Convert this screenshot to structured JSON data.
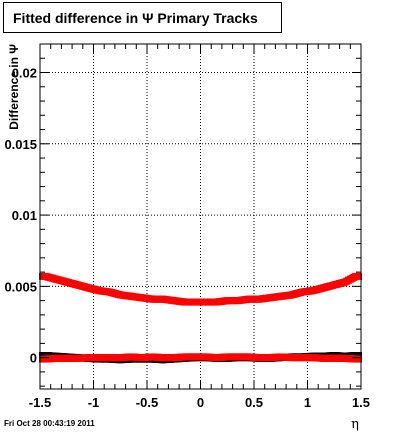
{
  "title": "Fitted difference in Ψ  Primary Tracks",
  "footer": "Fri Oct 28 00:43:19 2011",
  "chart_data": {
    "type": "scatter",
    "title": "Fitted difference in Ψ  Primary Tracks",
    "xlabel": "η",
    "ylabel": "Difference in Ψ",
    "xlim": [
      -1.5,
      1.5
    ],
    "ylim": [
      -0.0022,
      0.022
    ],
    "grid": true,
    "x_ticks": [
      -1.5,
      -1,
      -0.5,
      0,
      0.5,
      1,
      1.5
    ],
    "x_tick_labels": [
      "-1.5",
      "-1",
      "-0.5",
      "0",
      "0.5",
      "1",
      "1.5"
    ],
    "y_ticks": [
      0,
      0.005,
      0.01,
      0.015,
      0.02
    ],
    "y_tick_labels": [
      "0",
      "0.005",
      "0.01",
      "0.015",
      "0.02"
    ],
    "series": [
      {
        "color": "#000000",
        "x": [
          -1.45,
          -1.35,
          -1.25,
          -1.15,
          -1.05,
          -0.95,
          -0.85,
          -0.75,
          -0.65,
          -0.55,
          -0.45,
          -0.35,
          -0.25,
          -0.15,
          -0.05,
          0.05,
          0.15,
          0.25,
          0.35,
          0.45,
          0.55,
          0.65,
          0.75,
          0.85,
          0.95,
          1.05,
          1.15,
          1.25,
          1.35,
          1.45
        ],
        "y": [
          0.00015,
          0.0001,
          5e-05,
          0.0,
          -5e-05,
          -0.0001,
          -0.0001,
          -0.00015,
          -0.0001,
          -0.0001,
          -0.0001,
          -0.00015,
          -0.0001,
          -5e-05,
          0.0,
          0.0,
          -5e-05,
          -5e-05,
          0.0,
          0.0,
          -5e-05,
          -5e-05,
          0.0,
          5e-05,
          5e-05,
          0.0001,
          0.0001,
          0.00015,
          0.0001,
          0.00015
        ]
      },
      {
        "color": "#ff0000",
        "x": [
          -1.45,
          -1.35,
          -1.25,
          -1.15,
          -1.05,
          -0.95,
          -0.85,
          -0.75,
          -0.65,
          -0.55,
          -0.45,
          -0.35,
          -0.25,
          -0.15,
          -0.05,
          0.05,
          0.15,
          0.25,
          0.35,
          0.45,
          0.55,
          0.65,
          0.75,
          0.85,
          0.95,
          1.05,
          1.15,
          1.25,
          1.35,
          1.45
        ],
        "y": [
          -0.0001,
          -5e-05,
          -5e-05,
          -5e-05,
          0.0,
          0.0,
          0.0,
          0.0,
          5e-05,
          0.0,
          5e-05,
          0.0,
          0.0,
          5e-05,
          5e-05,
          5e-05,
          0.0,
          5e-05,
          5e-05,
          5e-05,
          0.0,
          0.0,
          5e-05,
          0.0,
          0.0,
          0.0,
          -5e-05,
          -5e-05,
          -5e-05,
          -0.0001
        ]
      },
      {
        "color": "#ff0000",
        "x": [
          -1.45,
          -1.35,
          -1.25,
          -1.15,
          -1.05,
          -0.95,
          -0.85,
          -0.75,
          -0.65,
          -0.55,
          -0.45,
          -0.35,
          -0.25,
          -0.15,
          -0.05,
          0.05,
          0.15,
          0.25,
          0.35,
          0.45,
          0.55,
          0.65,
          0.75,
          0.85,
          0.95,
          1.05,
          1.15,
          1.25,
          1.35,
          1.45
        ],
        "y": [
          0.0057,
          0.0055,
          0.0053,
          0.0051,
          0.0049,
          0.0047,
          0.0046,
          0.0044,
          0.0043,
          0.0042,
          0.0041,
          0.0041,
          0.004,
          0.0039,
          0.0039,
          0.0039,
          0.0039,
          0.004,
          0.004,
          0.0041,
          0.0041,
          0.0042,
          0.0043,
          0.0044,
          0.0046,
          0.0047,
          0.0049,
          0.0051,
          0.0053,
          0.0057
        ]
      }
    ]
  }
}
